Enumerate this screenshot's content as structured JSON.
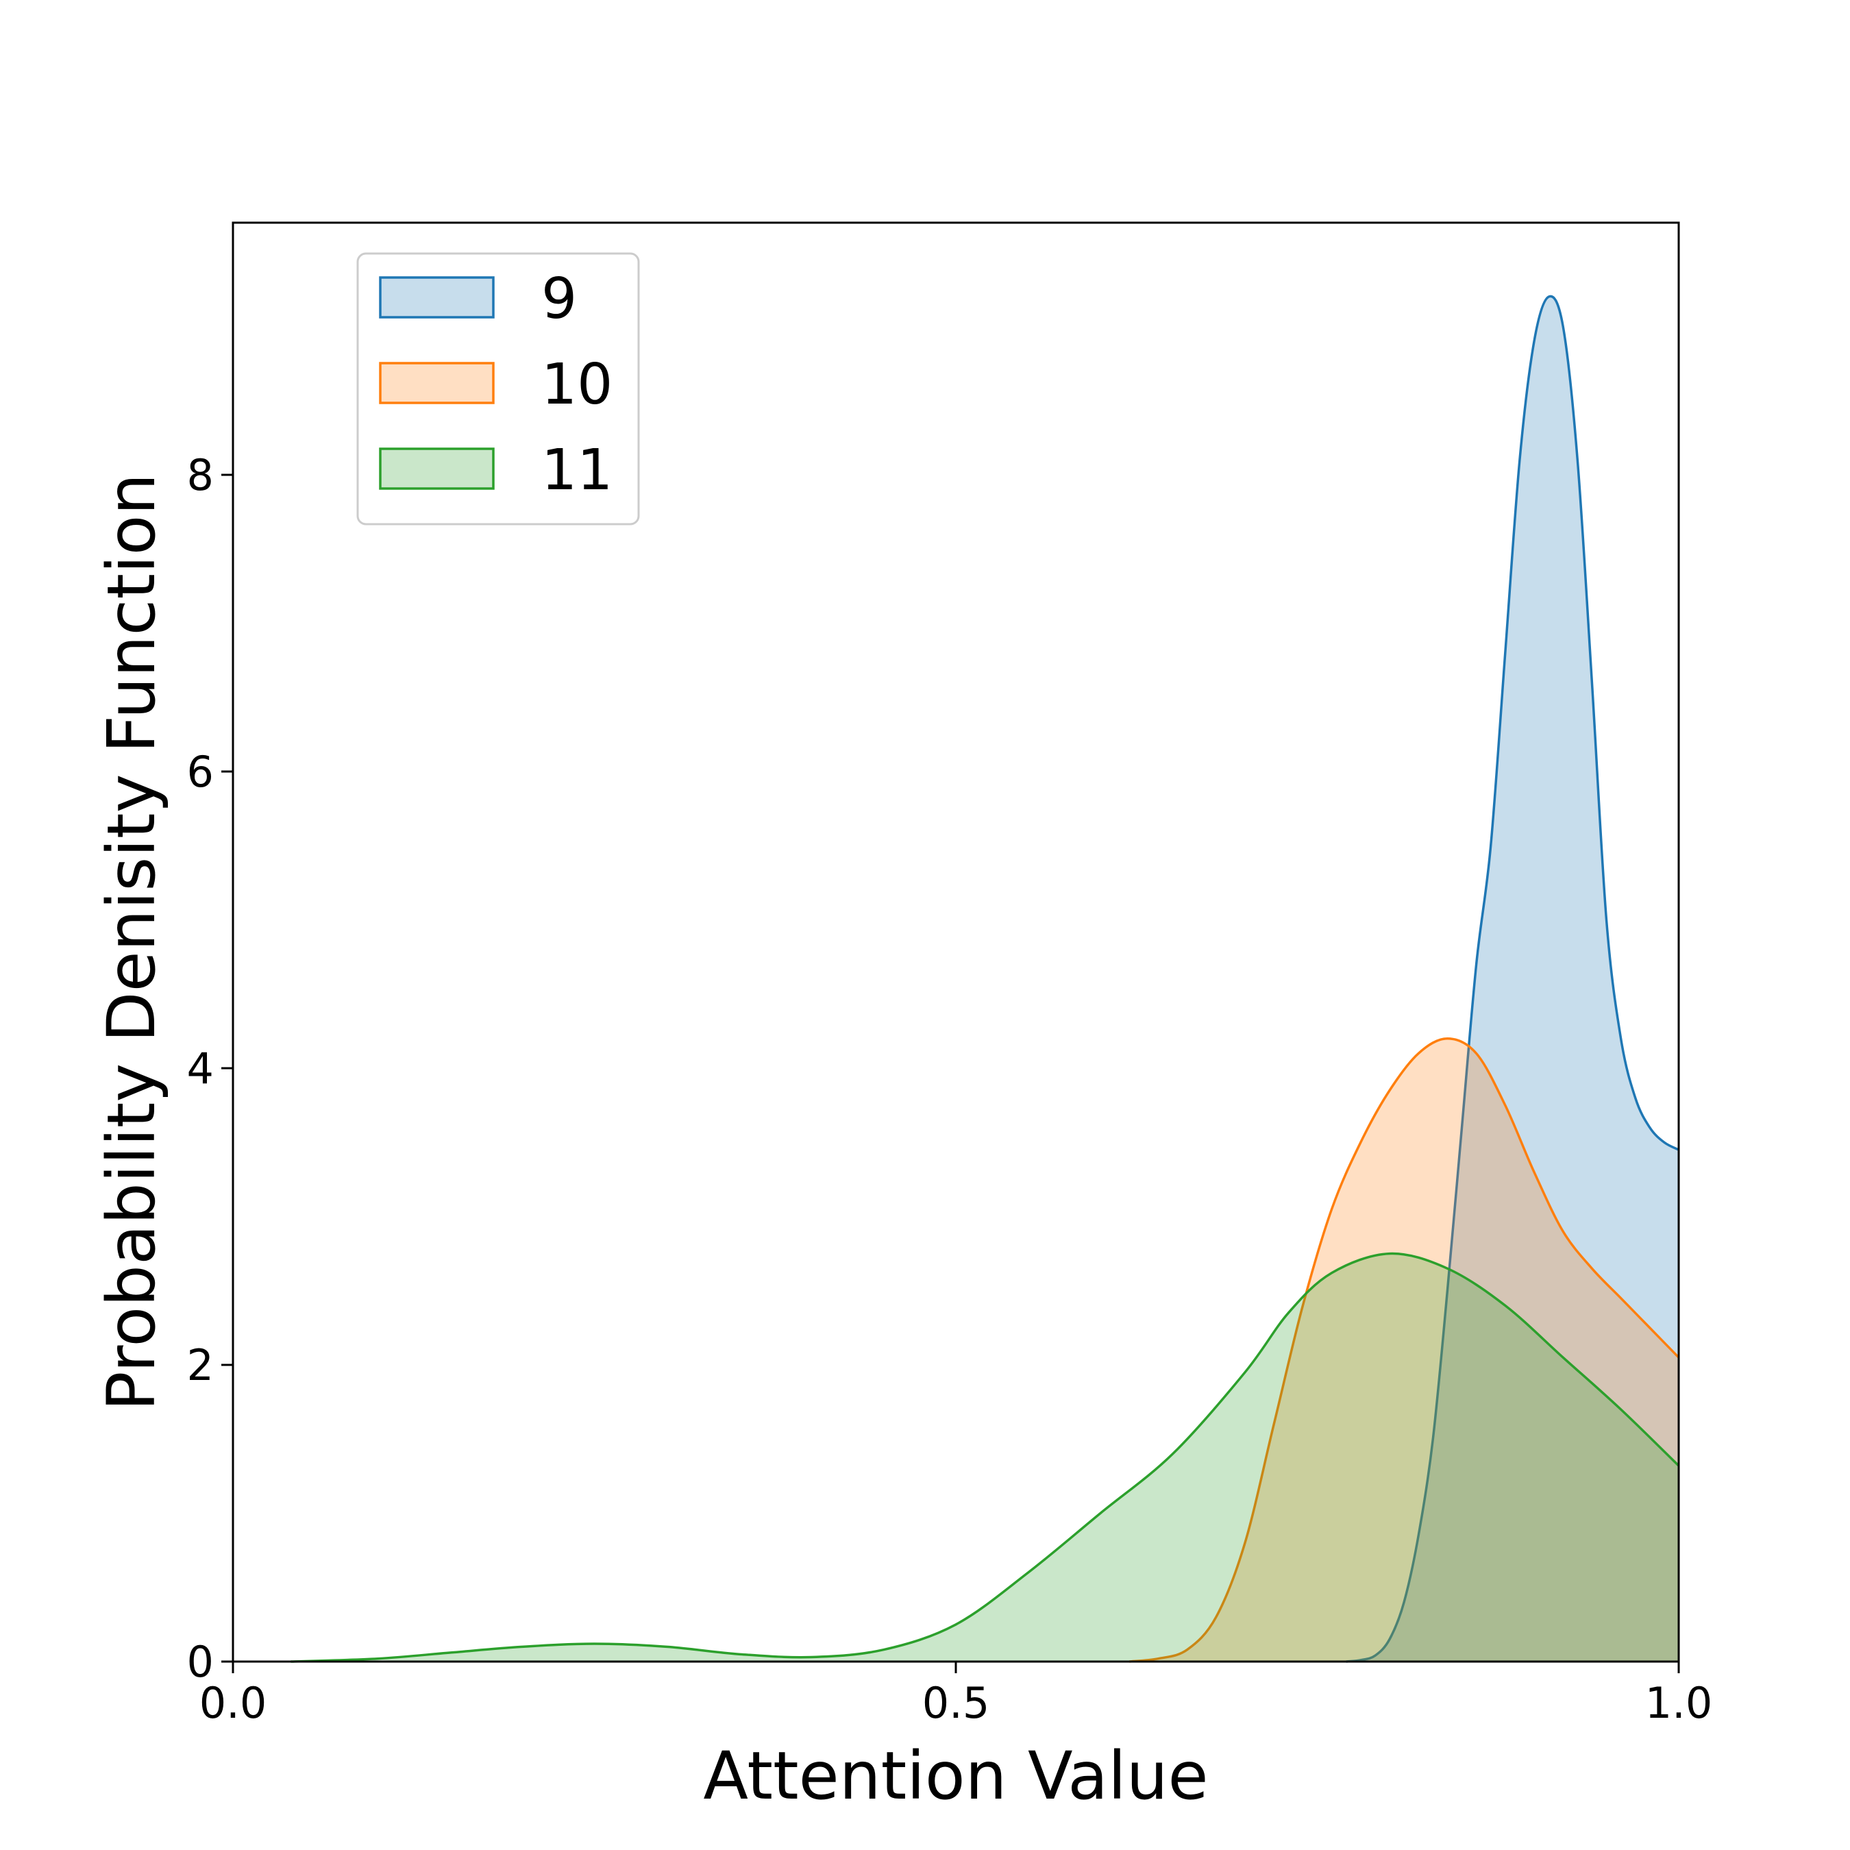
{
  "chart_data": {
    "type": "area",
    "title": "",
    "xlabel": "Attention Value",
    "ylabel": "Probability Denisity Function",
    "xlim": [
      0.0,
      1.0
    ],
    "ylim": [
      0,
      9.7
    ],
    "xticks": [
      0.0,
      0.5,
      1.0
    ],
    "xtick_labels": [
      "0.0",
      "0.5",
      "1.0"
    ],
    "yticks": [
      0,
      2,
      4,
      6,
      8
    ],
    "ytick_labels": [
      "0",
      "2",
      "4",
      "6",
      "8"
    ],
    "grid": false,
    "legend_position": "upper-left",
    "series": [
      {
        "name": "9",
        "color": "#1f77b4",
        "fill": "#c6dbee",
        "points": [
          [
            0.77,
            0.0
          ],
          [
            0.78,
            0.01
          ],
          [
            0.79,
            0.04
          ],
          [
            0.8,
            0.15
          ],
          [
            0.81,
            0.4
          ],
          [
            0.82,
            0.85
          ],
          [
            0.83,
            1.5
          ],
          [
            0.84,
            2.5
          ],
          [
            0.85,
            3.6
          ],
          [
            0.86,
            4.7
          ],
          [
            0.87,
            5.5
          ],
          [
            0.88,
            6.8
          ],
          [
            0.89,
            8.1
          ],
          [
            0.9,
            8.9
          ],
          [
            0.91,
            9.2
          ],
          [
            0.92,
            9.0
          ],
          [
            0.93,
            8.1
          ],
          [
            0.94,
            6.6
          ],
          [
            0.95,
            5.0
          ],
          [
            0.96,
            4.2
          ],
          [
            0.97,
            3.8
          ],
          [
            0.98,
            3.6
          ],
          [
            0.99,
            3.5
          ],
          [
            1.0,
            3.45
          ]
        ]
      },
      {
        "name": "10",
        "color": "#ff7f0e",
        "fill": "#ffdcbe",
        "points": [
          [
            0.62,
            0.0
          ],
          [
            0.64,
            0.02
          ],
          [
            0.66,
            0.08
          ],
          [
            0.68,
            0.3
          ],
          [
            0.7,
            0.8
          ],
          [
            0.72,
            1.6
          ],
          [
            0.74,
            2.4
          ],
          [
            0.76,
            3.05
          ],
          [
            0.78,
            3.5
          ],
          [
            0.8,
            3.85
          ],
          [
            0.82,
            4.1
          ],
          [
            0.84,
            4.2
          ],
          [
            0.86,
            4.1
          ],
          [
            0.88,
            3.75
          ],
          [
            0.9,
            3.3
          ],
          [
            0.92,
            2.9
          ],
          [
            0.94,
            2.65
          ],
          [
            0.96,
            2.45
          ],
          [
            0.98,
            2.25
          ],
          [
            1.0,
            2.05
          ]
        ]
      },
      {
        "name": "11",
        "color": "#2ca02c",
        "fill": "#cce8cc",
        "points": [
          [
            0.04,
            0.0
          ],
          [
            0.1,
            0.02
          ],
          [
            0.15,
            0.06
          ],
          [
            0.2,
            0.1
          ],
          [
            0.25,
            0.12
          ],
          [
            0.3,
            0.1
          ],
          [
            0.35,
            0.05
          ],
          [
            0.4,
            0.03
          ],
          [
            0.45,
            0.08
          ],
          [
            0.5,
            0.25
          ],
          [
            0.55,
            0.6
          ],
          [
            0.6,
            1.0
          ],
          [
            0.65,
            1.4
          ],
          [
            0.7,
            1.95
          ],
          [
            0.73,
            2.35
          ],
          [
            0.76,
            2.62
          ],
          [
            0.8,
            2.75
          ],
          [
            0.84,
            2.65
          ],
          [
            0.88,
            2.4
          ],
          [
            0.92,
            2.05
          ],
          [
            0.96,
            1.7
          ],
          [
            1.0,
            1.32
          ]
        ]
      }
    ]
  }
}
